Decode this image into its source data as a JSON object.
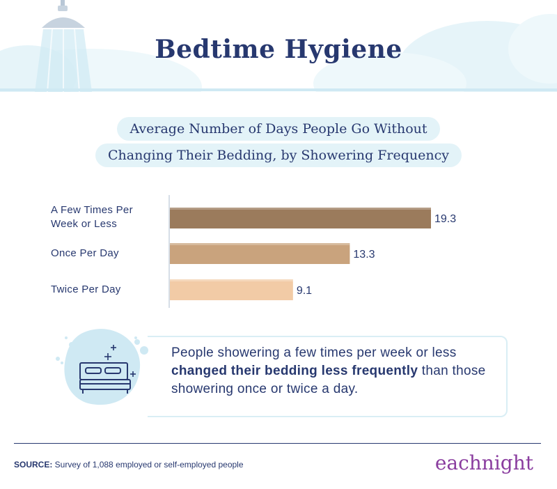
{
  "header": {
    "title": "Bedtime Hygiene"
  },
  "subtitle": {
    "line1": "Average Number of Days People Go Without",
    "line2": "Changing Their Bedding, by Showering Frequency"
  },
  "chart_data": {
    "type": "bar",
    "orientation": "horizontal",
    "title": "Average Number of Days People Go Without Changing Their Bedding, by Showering Frequency",
    "categories": [
      "A Few Times Per Week or Less",
      "Once Per Day",
      "Twice Per Day"
    ],
    "category_lines": [
      [
        "A Few Times Per",
        "Week or Less"
      ],
      [
        "Once Per Day"
      ],
      [
        "Twice Per Day"
      ]
    ],
    "values": [
      19.3,
      13.3,
      9.1
    ],
    "value_labels": [
      "19.3",
      "13.3",
      "9.1"
    ],
    "colors": [
      "#9b7b5c",
      "#c9a37d",
      "#f2cba6"
    ],
    "xlim": [
      0,
      20
    ],
    "grid": false
  },
  "callout": {
    "text_before": "People showering a few times per week or less ",
    "text_bold": "changed their bedding less frequently",
    "text_after": " than those showering once or twice a day."
  },
  "footer": {
    "source_label": "SOURCE:",
    "source_text": " Survey of 1,088 employed or self-employed people",
    "brand": "eachnight"
  },
  "colors": {
    "navy": "#27386f",
    "sky": "#dff1f7",
    "brand_purple": "#8a3d9f"
  }
}
